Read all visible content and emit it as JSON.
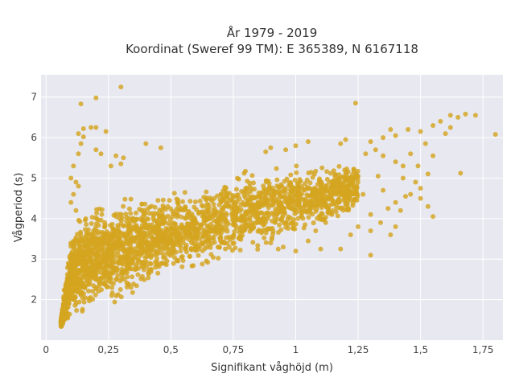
{
  "chart_data": {
    "type": "scatter",
    "title": "År 1979 - 2019",
    "subtitle": "Koordinat (Sweref 99 TM): E 365389, N 6167118",
    "xlabel": "Signifikant våghöjd (m)",
    "ylabel": "Vågperiod (s)",
    "xlim": [
      -0.02,
      1.83
    ],
    "ylim": [
      1.0,
      7.55
    ],
    "x_ticks": [
      0,
      0.25,
      0.5,
      0.75,
      1,
      1.25,
      1.5,
      1.75
    ],
    "x_tick_labels": [
      "0",
      "0,25",
      "0,5",
      "0,75",
      "1",
      "1,25",
      "1,5",
      "1,75"
    ],
    "y_ticks": [
      2,
      3,
      4,
      5,
      6,
      7
    ],
    "y_tick_labels": [
      "2",
      "3",
      "4",
      "5",
      "6",
      "7"
    ],
    "grid": true,
    "background": "#E8E8F0",
    "series": [
      {
        "color": "#D4A520",
        "dense_band": [
          [
            0.06,
            1.3,
            1.55
          ],
          [
            0.1,
            1.35,
            3.9
          ],
          [
            0.15,
            1.45,
            4.3
          ],
          [
            0.2,
            1.7,
            4.5
          ],
          [
            0.3,
            1.9,
            4.6
          ],
          [
            0.4,
            2.2,
            4.7
          ],
          [
            0.5,
            2.4,
            4.8
          ],
          [
            0.6,
            2.6,
            4.9
          ],
          [
            0.7,
            2.8,
            5.1
          ],
          [
            0.8,
            3.0,
            5.3
          ],
          [
            0.9,
            3.2,
            5.4
          ],
          [
            1.0,
            3.4,
            5.5
          ],
          [
            1.1,
            3.6,
            5.5
          ],
          [
            1.2,
            3.9,
            5.5
          ],
          [
            1.25,
            4.1,
            5.45
          ]
        ],
        "points": [
          [
            0.3,
            7.25
          ],
          [
            0.2,
            6.98
          ],
          [
            0.14,
            6.83
          ],
          [
            0.13,
            6.1
          ],
          [
            0.15,
            6.02
          ],
          [
            0.18,
            6.25
          ],
          [
            0.2,
            6.25
          ],
          [
            0.15,
            6.22
          ],
          [
            0.24,
            6.15
          ],
          [
            0.14,
            5.85
          ],
          [
            0.13,
            5.6
          ],
          [
            0.2,
            5.7
          ],
          [
            0.22,
            5.6
          ],
          [
            0.28,
            5.55
          ],
          [
            0.31,
            5.5
          ],
          [
            0.4,
            5.85
          ],
          [
            0.46,
            5.75
          ],
          [
            0.26,
            5.3
          ],
          [
            0.3,
            5.35
          ],
          [
            0.11,
            5.3
          ],
          [
            0.1,
            5.0
          ],
          [
            0.12,
            4.9
          ],
          [
            0.13,
            4.8
          ],
          [
            0.11,
            4.6
          ],
          [
            0.1,
            4.4
          ],
          [
            0.12,
            4.2
          ],
          [
            1.24,
            6.85
          ],
          [
            1.38,
            6.2
          ],
          [
            1.35,
            6.0
          ],
          [
            1.4,
            6.05
          ],
          [
            1.45,
            6.2
          ],
          [
            1.5,
            6.15
          ],
          [
            1.6,
            6.1
          ],
          [
            1.58,
            6.4
          ],
          [
            1.62,
            6.55
          ],
          [
            1.65,
            6.5
          ],
          [
            1.68,
            6.58
          ],
          [
            1.72,
            6.55
          ],
          [
            1.8,
            6.08
          ],
          [
            1.62,
            6.25
          ],
          [
            1.55,
            6.3
          ],
          [
            1.52,
            5.85
          ],
          [
            1.46,
            5.6
          ],
          [
            1.55,
            5.55
          ],
          [
            1.4,
            5.4
          ],
          [
            1.43,
            5.3
          ],
          [
            1.49,
            5.3
          ],
          [
            1.53,
            5.1
          ],
          [
            1.66,
            5.12
          ],
          [
            1.32,
            5.7
          ],
          [
            1.35,
            5.55
          ],
          [
            1.28,
            5.6
          ],
          [
            1.3,
            5.9
          ],
          [
            1.2,
            5.95
          ],
          [
            1.18,
            5.85
          ],
          [
            1.05,
            5.9
          ],
          [
            1.0,
            5.8
          ],
          [
            0.96,
            5.7
          ],
          [
            0.9,
            5.75
          ],
          [
            0.88,
            5.65
          ],
          [
            1.5,
            4.75
          ],
          [
            1.55,
            4.05
          ],
          [
            1.53,
            4.3
          ],
          [
            1.5,
            4.5
          ],
          [
            1.44,
            4.55
          ],
          [
            1.4,
            4.4
          ],
          [
            1.37,
            4.25
          ],
          [
            1.3,
            4.1
          ],
          [
            1.34,
            3.9
          ],
          [
            1.3,
            3.7
          ],
          [
            1.25,
            3.8
          ],
          [
            1.22,
            3.6
          ],
          [
            1.38,
            3.6
          ],
          [
            1.4,
            3.8
          ],
          [
            1.42,
            4.2
          ],
          [
            1.46,
            4.6
          ],
          [
            1.43,
            5.0
          ],
          [
            1.48,
            4.9
          ],
          [
            1.35,
            4.7
          ],
          [
            1.27,
            4.6
          ],
          [
            1.2,
            4.45
          ],
          [
            1.16,
            4.6
          ],
          [
            1.12,
            3.9
          ],
          [
            1.08,
            3.7
          ],
          [
            1.3,
            3.1
          ],
          [
            1.18,
            3.25
          ],
          [
            1.1,
            3.25
          ],
          [
            1.05,
            3.45
          ],
          [
            1.0,
            3.2
          ],
          [
            0.95,
            3.3
          ],
          [
            0.9,
            3.4
          ],
          [
            0.93,
            3.25
          ],
          [
            1.2,
            4.95
          ],
          [
            1.25,
            5.05
          ],
          [
            1.33,
            5.05
          ]
        ]
      }
    ]
  }
}
